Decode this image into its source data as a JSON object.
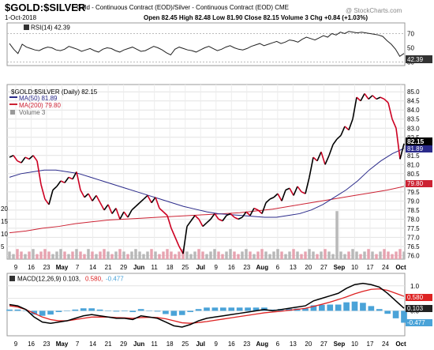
{
  "header": {
    "symbol": "$GOLD:$SILVER",
    "subtitle": "Gold - Continuous Contract (EOD)/Silver - Continuous Contract (EOD) CME",
    "date": "1-Oct-2018",
    "ohlc": "Open 82.45 High 82.48 Low 81.90 Close 82.15 Volume 3 Chg +0.84 (+1.03%)",
    "watermark": "@ StockCharts.com"
  },
  "chart_data": [
    {
      "type": "line",
      "panel": "rsi",
      "legend": "RSI(14) 42.39",
      "last_label": "42.39",
      "ylim": [
        25,
        85
      ],
      "y_ticks": [
        70,
        50,
        30
      ],
      "ref_lines": [
        70,
        30
      ],
      "values": [
        56,
        48,
        42,
        55,
        51,
        49,
        47,
        46,
        49,
        51,
        50,
        47,
        46,
        48,
        52,
        50,
        48,
        45,
        47,
        49,
        46,
        44,
        48,
        50,
        49,
        46,
        44,
        47,
        49,
        51,
        48,
        45,
        46,
        49,
        52,
        50,
        47,
        43,
        40,
        48,
        51,
        49,
        47,
        46,
        44,
        47,
        50,
        52,
        49,
        46,
        48,
        51,
        53,
        50,
        48,
        47,
        49,
        52,
        54,
        56,
        53,
        55,
        57,
        59,
        56,
        58,
        61,
        60,
        58,
        62,
        65,
        63,
        61,
        64,
        67,
        65,
        70,
        68,
        72,
        70,
        73,
        72,
        71,
        72,
        71,
        70,
        69,
        68,
        66,
        60,
        55,
        48,
        38,
        42
      ]
    },
    {
      "type": "line",
      "panel": "price",
      "legend": {
        "main": "$GOLD:$SILVER (Daily) 82.15",
        "ma50": "MA(50) 81.89",
        "ma200": "MA(200) 79.80",
        "volume": "Volume 3"
      },
      "last_labels": {
        "close": "82.15",
        "ma50": "81.89",
        "ma200": "79.80"
      },
      "ylim": [
        75.8,
        85.4
      ],
      "y_ticks": [
        85.0,
        84.5,
        84.0,
        83.5,
        83.0,
        82.5,
        82.0,
        81.5,
        81.0,
        80.5,
        80.0,
        79.5,
        79.0,
        78.5,
        78.0,
        77.5,
        77.0,
        76.5,
        76.0
      ],
      "volume_ticks": [
        20,
        15,
        10,
        5
      ],
      "x_labels": [
        "9",
        "16",
        "23",
        "May",
        "7",
        "14",
        "21",
        "29",
        "Jun",
        "11",
        "18",
        "25",
        "Jul",
        "9",
        "16",
        "23",
        "Aug",
        "6",
        "13",
        "20",
        "27",
        "Sep",
        "10",
        "17",
        "24",
        "Oct"
      ],
      "close": [
        81.4,
        81.5,
        81.2,
        81.1,
        81.4,
        81.3,
        81.5,
        81.2,
        79.9,
        79.1,
        78.8,
        79.6,
        79.8,
        80.1,
        80.0,
        80.3,
        80.2,
        80.6,
        79.6,
        79.2,
        79.4,
        79.0,
        79.3,
        78.9,
        78.5,
        78.8,
        78.3,
        78.6,
        78.0,
        78.4,
        78.1,
        78.5,
        78.7,
        78.9,
        79.1,
        79.3,
        78.9,
        79.2,
        78.6,
        78.4,
        78.2,
        77.5,
        77.0,
        76.5,
        76.1,
        77.6,
        77.9,
        78.2,
        78.0,
        77.6,
        77.8,
        78.0,
        78.3,
        78.0,
        77.9,
        78.2,
        78.3,
        78.1,
        78.0,
        78.1,
        78.4,
        78.2,
        78.6,
        78.5,
        78.3,
        78.9,
        79.1,
        79.2,
        79.4,
        79.0,
        79.6,
        79.7,
        79.3,
        79.8,
        79.5,
        79.4,
        80.3,
        81.4,
        81.2,
        81.7,
        81.0,
        81.5,
        82.1,
        82.4,
        82.6,
        83.1,
        82.9,
        83.5,
        84.7,
        84.5,
        84.9,
        84.6,
        84.8,
        84.6,
        84.7,
        84.6,
        84.4,
        83.5,
        83.0,
        81.3,
        82.15
      ],
      "ma50": [
        80.3,
        80.5,
        80.6,
        80.7,
        80.7,
        80.6,
        80.5,
        80.3,
        80.1,
        79.9,
        79.7,
        79.5,
        79.3,
        79.1,
        78.9,
        78.7,
        78.55,
        78.4,
        78.3,
        78.25,
        78.2,
        78.15,
        78.1,
        78.1,
        78.2,
        78.3,
        78.5,
        78.8,
        79.2,
        79.6,
        80.1,
        80.7,
        81.2,
        81.6,
        81.89
      ],
      "ma200": [
        77.25,
        77.35,
        77.5,
        77.6,
        77.75,
        77.85,
        77.95,
        78.0,
        78.05,
        78.1,
        78.15,
        78.2,
        78.25,
        78.3,
        78.35,
        78.45,
        78.55,
        78.7,
        78.85,
        79.0,
        79.15,
        79.3,
        79.45,
        79.6,
        79.8
      ],
      "volume": [
        3,
        2,
        4,
        3,
        2,
        3,
        4,
        2,
        3,
        4,
        3,
        2,
        3,
        4,
        3,
        2,
        3,
        4,
        3,
        2,
        4,
        3,
        2,
        3,
        4,
        3,
        2,
        3,
        4,
        3,
        2,
        3,
        4,
        3,
        2,
        3,
        4,
        3,
        2,
        3,
        4,
        3,
        2,
        3,
        4,
        3,
        2,
        3,
        4,
        3,
        2,
        3,
        4,
        3,
        2,
        3,
        4,
        3,
        2,
        3,
        4,
        3,
        2,
        3,
        4,
        3,
        2,
        3,
        4,
        3,
        2,
        3,
        4,
        3,
        2,
        3,
        4,
        3,
        2,
        3,
        4,
        3,
        2,
        19,
        3,
        2,
        3,
        4,
        3,
        2,
        3,
        4,
        3,
        2,
        3,
        4,
        3,
        2,
        3,
        4,
        3
      ],
      "volume_max": 25
    },
    {
      "type": "line",
      "panel": "macd",
      "legend": {
        "macd": "MACD(12,26,9) 0.103,",
        "signal": "0.580,",
        "hist": "-0.477"
      },
      "last_labels": {
        "signal": "0.580",
        "macd": "0.103",
        "hist": "-0.477"
      },
      "ylim": [
        -1.0,
        1.5
      ],
      "y_ticks": [
        1.0,
        0.5,
        0.0
      ],
      "x_labels": [
        "9",
        "16",
        "23",
        "May",
        "7",
        "14",
        "21",
        "29",
        "Jun",
        "11",
        "18",
        "25",
        "Jul",
        "9",
        "16",
        "23",
        "Aug",
        "6",
        "13",
        "20",
        "27",
        "Sep",
        "10",
        "17",
        "24",
        "Oct"
      ],
      "macd": [
        0.25,
        0.2,
        0.05,
        -0.25,
        -0.45,
        -0.5,
        -0.45,
        -0.4,
        -0.3,
        -0.2,
        -0.15,
        -0.2,
        -0.25,
        -0.3,
        -0.3,
        -0.35,
        -0.2,
        -0.25,
        -0.3,
        -0.45,
        -0.6,
        -0.65,
        -0.55,
        -0.4,
        -0.3,
        -0.25,
        -0.2,
        -0.15,
        -0.1,
        -0.05,
        0.0,
        0.05,
        0.0,
        0.05,
        0.1,
        0.15,
        0.2,
        0.4,
        0.5,
        0.6,
        0.7,
        0.9,
        1.05,
        1.1,
        1.05,
        0.95,
        0.7,
        0.4,
        0.103
      ],
      "signal": [
        0.2,
        0.15,
        0.05,
        -0.1,
        -0.25,
        -0.35,
        -0.4,
        -0.4,
        -0.35,
        -0.3,
        -0.25,
        -0.25,
        -0.25,
        -0.27,
        -0.28,
        -0.3,
        -0.27,
        -0.26,
        -0.27,
        -0.32,
        -0.4,
        -0.48,
        -0.5,
        -0.47,
        -0.43,
        -0.38,
        -0.33,
        -0.28,
        -0.23,
        -0.18,
        -0.13,
        -0.08,
        -0.05,
        -0.02,
        0.02,
        0.06,
        0.1,
        0.18,
        0.26,
        0.35,
        0.45,
        0.56,
        0.68,
        0.78,
        0.86,
        0.88,
        0.82,
        0.7,
        0.58
      ],
      "hist": [
        0.05,
        0.05,
        0.0,
        -0.15,
        -0.2,
        -0.15,
        -0.05,
        0.0,
        0.05,
        0.1,
        0.1,
        0.05,
        0.0,
        -0.03,
        -0.02,
        -0.05,
        0.07,
        0.01,
        -0.03,
        -0.13,
        -0.2,
        -0.17,
        -0.05,
        0.07,
        0.13,
        0.13,
        0.13,
        0.13,
        0.13,
        0.13,
        0.13,
        0.13,
        0.05,
        0.07,
        0.08,
        0.09,
        0.1,
        0.22,
        0.24,
        0.25,
        0.25,
        0.34,
        0.37,
        0.32,
        0.19,
        0.07,
        -0.12,
        -0.3,
        -0.477
      ]
    }
  ]
}
